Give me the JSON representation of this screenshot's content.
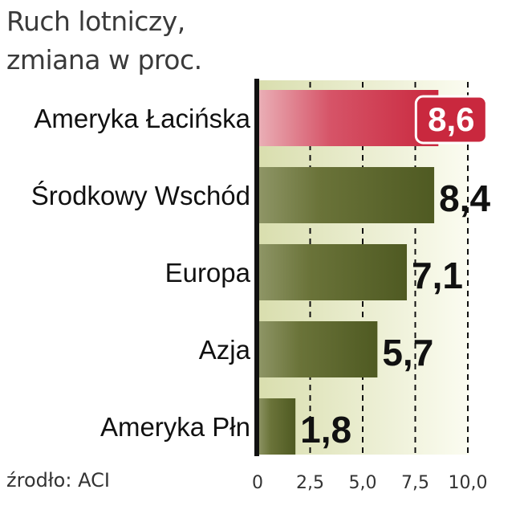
{
  "title_lines": [
    "Ruch lotniczy,",
    "zmiana  w proc."
  ],
  "source": "źrodło: ACI",
  "chart_data": {
    "type": "bar",
    "orientation": "horizontal",
    "categories": [
      "Ameryka Łacińska",
      "Środkowy Wschód",
      "Europa",
      "Azja",
      "Ameryka Płn"
    ],
    "values": [
      8.6,
      8.4,
      7.1,
      5.7,
      1.8
    ],
    "value_labels": [
      "8,6",
      "8,4",
      "7,1",
      "5,7",
      "1,8"
    ],
    "highlight_index": 0,
    "xlim": [
      0,
      10
    ],
    "x_ticks": [
      0,
      2.5,
      5.0,
      7.5,
      10.0
    ],
    "x_tick_labels": [
      "0",
      "2,5",
      "5,0",
      "7,5",
      "10,0"
    ],
    "grid": "vertical dashed",
    "colors": {
      "bar": "#4f5a22",
      "bar_light": "#8f9667",
      "highlight": "#c9283e",
      "highlight_light": "#e8aab2",
      "background_band": "#e2e6b8"
    }
  }
}
